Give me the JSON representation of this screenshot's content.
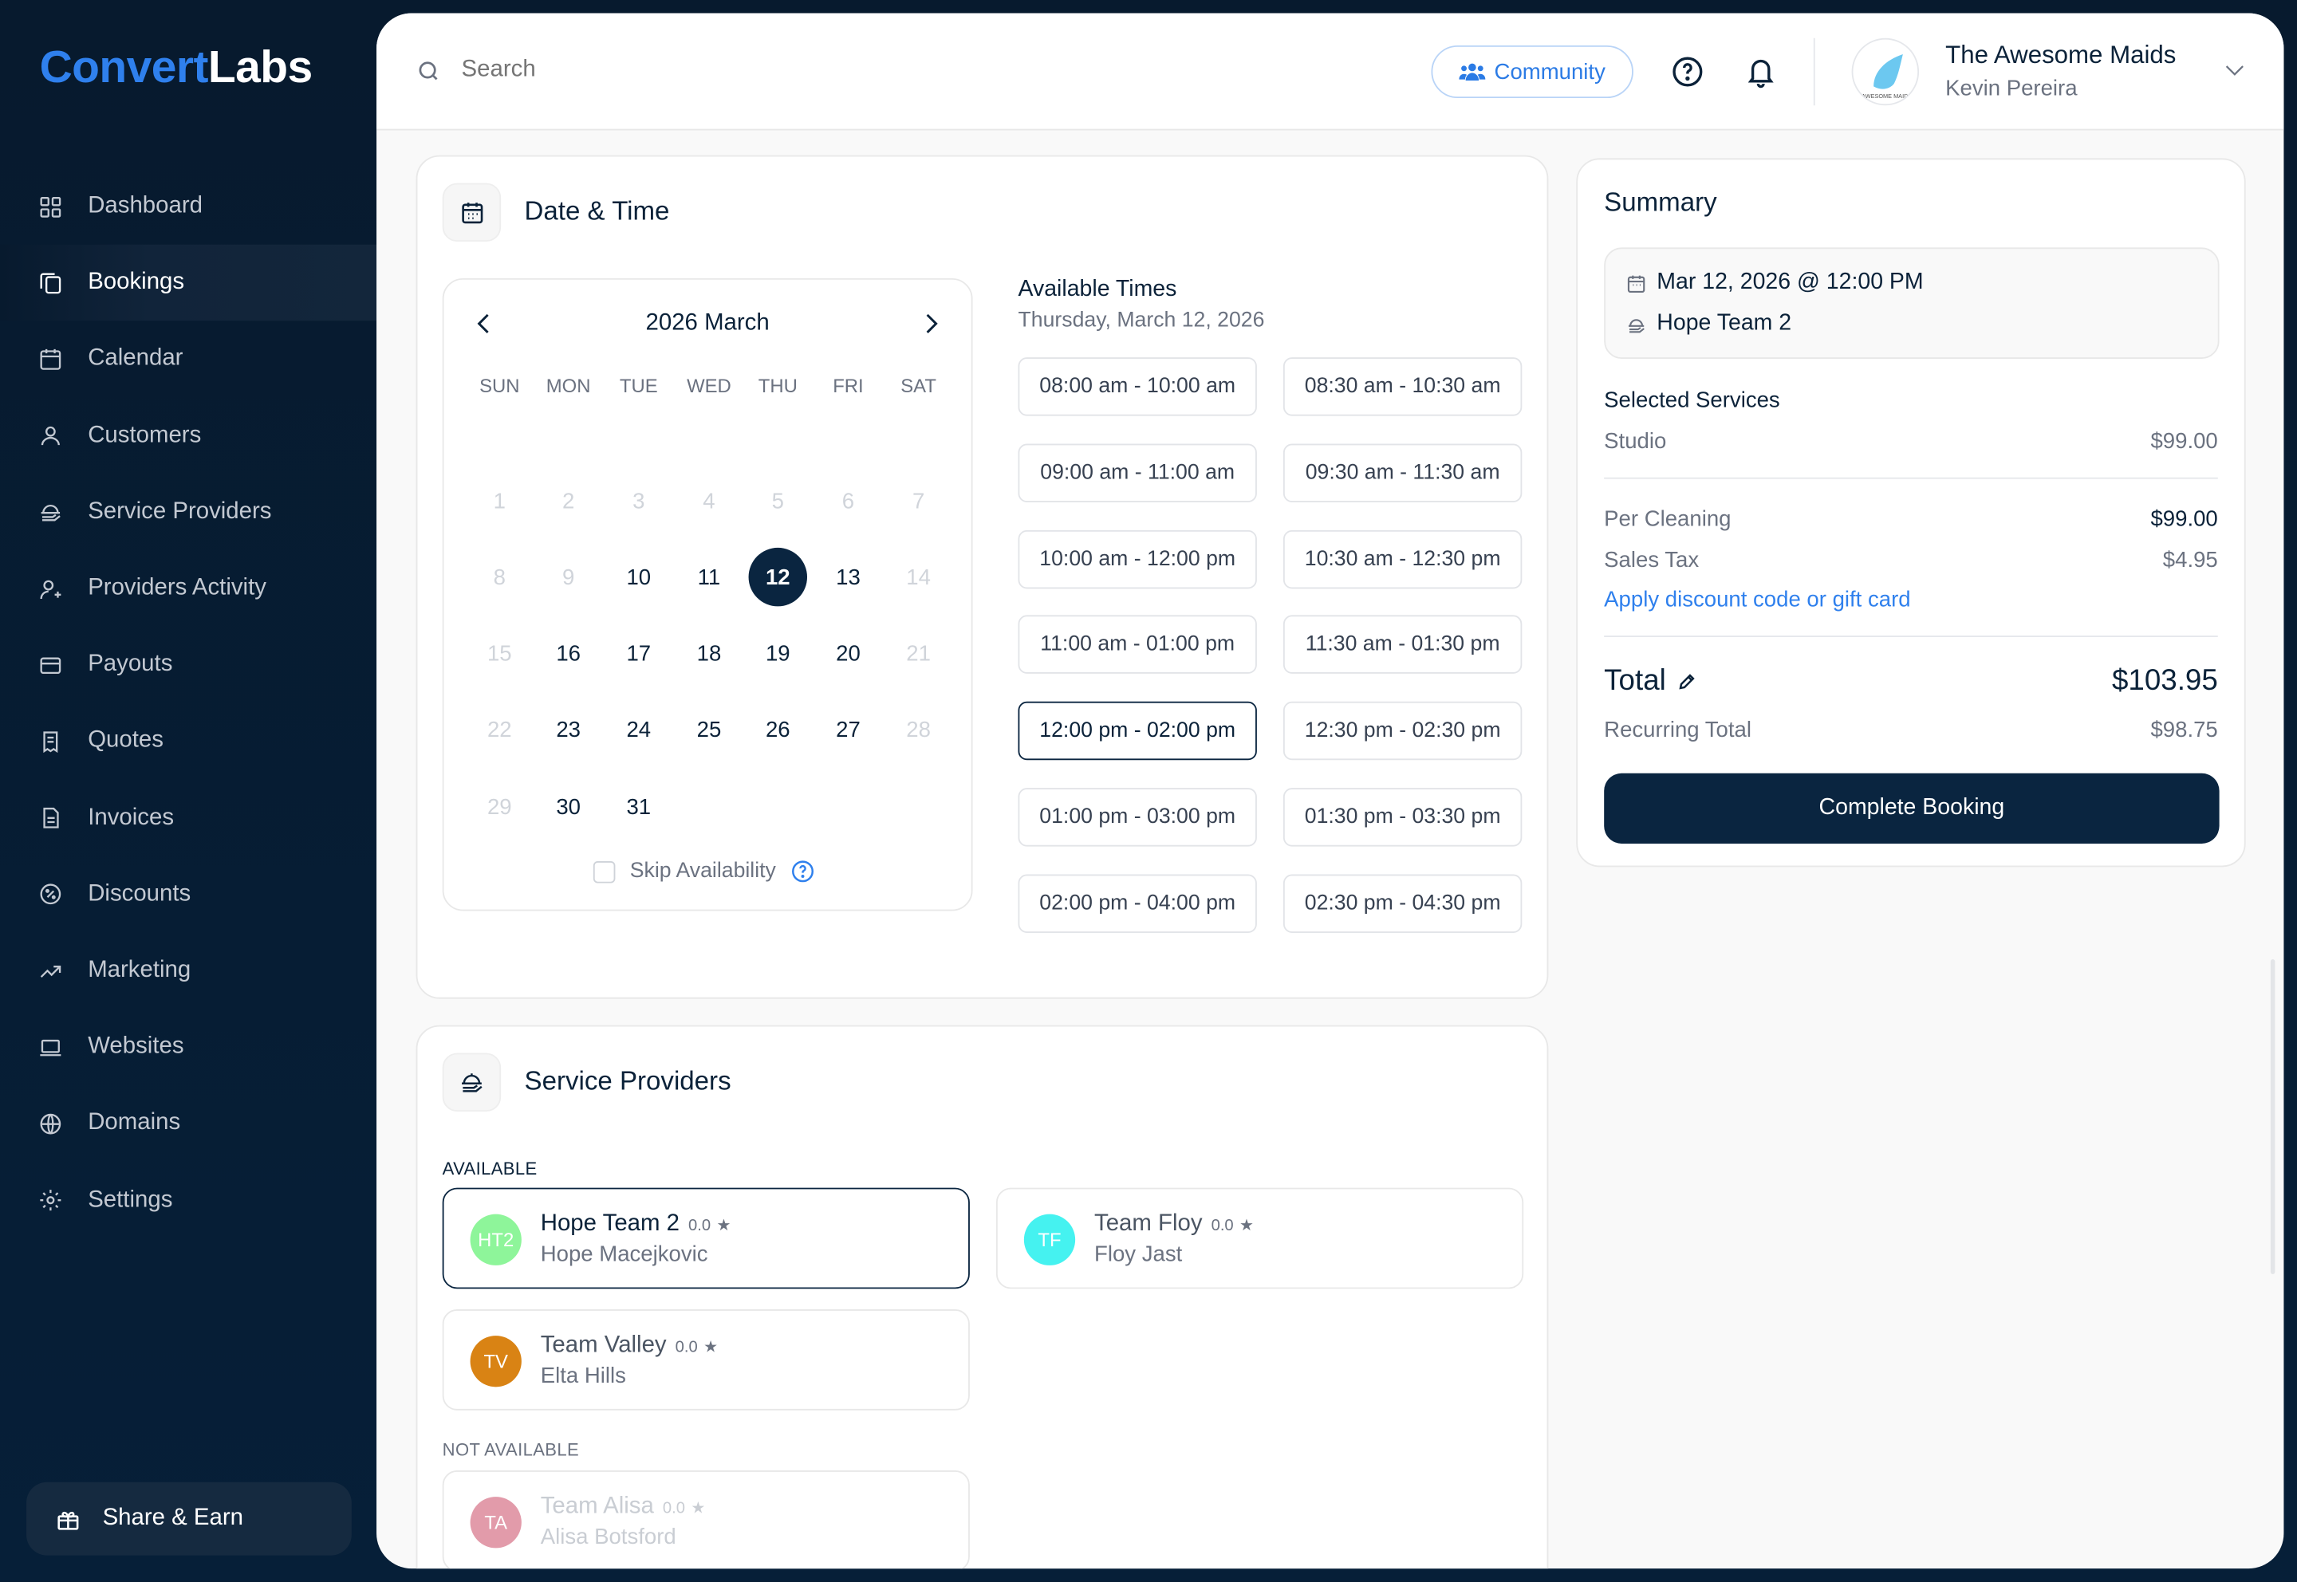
{
  "brand": {
    "part1": "Convert",
    "part2": "Labs"
  },
  "sidebar": {
    "items": [
      {
        "label": "Dashboard",
        "icon": "grid-icon"
      },
      {
        "label": "Bookings",
        "icon": "bookings-icon",
        "active": true
      },
      {
        "label": "Calendar",
        "icon": "calendar-icon"
      },
      {
        "label": "Customers",
        "icon": "user-icon"
      },
      {
        "label": "Service Providers",
        "icon": "service-provider-icon"
      },
      {
        "label": "Providers Activity",
        "icon": "user-activity-icon"
      },
      {
        "label": "Payouts",
        "icon": "card-icon"
      },
      {
        "label": "Quotes",
        "icon": "receipt-icon"
      },
      {
        "label": "Invoices",
        "icon": "document-icon"
      },
      {
        "label": "Discounts",
        "icon": "discount-icon"
      },
      {
        "label": "Marketing",
        "icon": "trend-icon"
      },
      {
        "label": "Websites",
        "icon": "laptop-icon"
      },
      {
        "label": "Domains",
        "icon": "globe-icon"
      },
      {
        "label": "Settings",
        "icon": "gear-icon"
      }
    ],
    "share": "Share & Earn"
  },
  "header": {
    "search_placeholder": "Search",
    "community": "Community",
    "company": "The Awesome Maids",
    "user": "Kevin Pereira",
    "avatar_text": "AWESOME MAIDS"
  },
  "datetime": {
    "title": "Date & Time",
    "month": "2026 March",
    "weekdays": [
      "SUN",
      "MON",
      "TUE",
      "WED",
      "THU",
      "FRI",
      "SAT"
    ],
    "weeks": [
      [
        null,
        null,
        null,
        null,
        null,
        null,
        null
      ],
      [
        {
          "d": "1",
          "dis": true
        },
        {
          "d": "2",
          "dis": true
        },
        {
          "d": "3",
          "dis": true
        },
        {
          "d": "4",
          "dis": true
        },
        {
          "d": "5",
          "dis": true
        },
        {
          "d": "6",
          "dis": true
        },
        {
          "d": "7",
          "dis": true
        }
      ],
      [
        {
          "d": "8",
          "dis": true
        },
        {
          "d": "9",
          "dis": true
        },
        {
          "d": "10"
        },
        {
          "d": "11"
        },
        {
          "d": "12",
          "sel": true
        },
        {
          "d": "13"
        },
        {
          "d": "14",
          "dis": true
        }
      ],
      [
        {
          "d": "15",
          "dis": true
        },
        {
          "d": "16"
        },
        {
          "d": "17"
        },
        {
          "d": "18"
        },
        {
          "d": "19"
        },
        {
          "d": "20"
        },
        {
          "d": "21",
          "dis": true
        }
      ],
      [
        {
          "d": "22",
          "dis": true
        },
        {
          "d": "23"
        },
        {
          "d": "24"
        },
        {
          "d": "25"
        },
        {
          "d": "26"
        },
        {
          "d": "27"
        },
        {
          "d": "28",
          "dis": true
        }
      ],
      [
        {
          "d": "29",
          "dis": true
        },
        {
          "d": "30"
        },
        {
          "d": "31"
        },
        null,
        null,
        null,
        null
      ]
    ],
    "skip": "Skip Availability",
    "avail_title": "Available Times",
    "avail_date": "Thursday, March 12, 2026",
    "slots": [
      "08:00 am - 10:00 am",
      "08:30 am - 10:30 am",
      "09:00 am - 11:00 am",
      "09:30 am - 11:30 am",
      "10:00 am - 12:00 pm",
      "10:30 am - 12:30 pm",
      "11:00 am - 01:00 pm",
      "11:30 am - 01:30 pm",
      "12:00 pm - 02:00 pm",
      "12:30 pm - 02:30 pm",
      "01:00 pm - 03:00 pm",
      "01:30 pm - 03:30 pm",
      "02:00 pm - 04:00 pm",
      "02:30 pm - 04:30 pm"
    ],
    "selected_slot": "12:00 pm - 02:00 pm"
  },
  "providers": {
    "title": "Service Providers",
    "available_label": "AVAILABLE",
    "not_available_label": "NOT AVAILABLE",
    "available": [
      {
        "initials": "HT2",
        "name": "Hope Team 2",
        "rating": "0.0",
        "person": "Hope Macejkovic",
        "color": "#8ef59a",
        "selected": true
      },
      {
        "initials": "TF",
        "name": "Team Floy",
        "rating": "0.0",
        "person": "Floy Jast",
        "color": "#45f2f0"
      },
      {
        "initials": "TV",
        "name": "Team Valley",
        "rating": "0.0",
        "person": "Elta Hills",
        "color": "#d98314"
      }
    ],
    "not_available": [
      {
        "initials": "TA",
        "name": "Team Alisa",
        "rating": "0.0",
        "person": "Alisa Botsford",
        "color": "#d97a8e"
      }
    ]
  },
  "summary": {
    "title": "Summary",
    "datetime": "Mar 12, 2026 @ 12:00 PM",
    "team": "Hope Team 2",
    "selected_services": "Selected Services",
    "service": "Studio",
    "service_price": "$99.00",
    "per_cleaning": "Per Cleaning",
    "per_cleaning_price": "$99.00",
    "sales_tax": "Sales Tax",
    "sales_tax_price": "$4.95",
    "discount_link": "Apply discount code or gift card",
    "total": "Total",
    "total_price": "$103.95",
    "recurring": "Recurring Total",
    "recurring_price": "$98.75",
    "button": "Complete Booking"
  },
  "colors": {
    "sidebar": "#071a2e",
    "accent": "#2f80ed",
    "primary": "#0a2540"
  }
}
